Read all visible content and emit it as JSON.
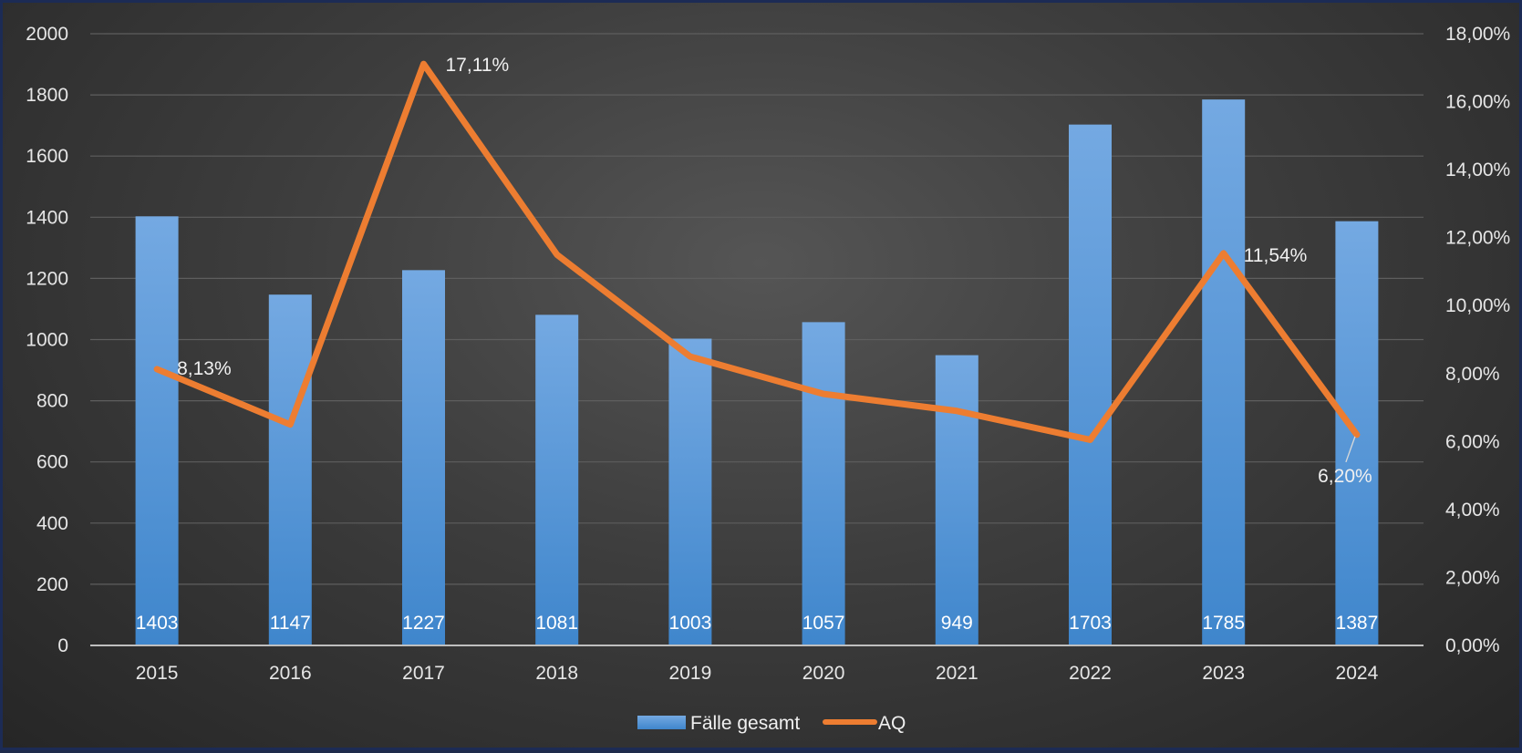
{
  "chart_data": {
    "type": "bar",
    "categories": [
      "2015",
      "2016",
      "2017",
      "2018",
      "2019",
      "2020",
      "2021",
      "2022",
      "2023",
      "2024"
    ],
    "series": [
      {
        "name": "Fälle gesamt",
        "type": "bar",
        "axis": "left",
        "color": "#5b9bd5",
        "values": [
          1403,
          1147,
          1227,
          1081,
          1003,
          1057,
          949,
          1703,
          1785,
          1387
        ],
        "data_labels": [
          "1403",
          "1147",
          "1227",
          "1081",
          "1003",
          "1057",
          "949",
          "1703",
          "1785",
          "1387"
        ]
      },
      {
        "name": "AQ",
        "type": "line",
        "axis": "right",
        "color": "#ed7d31",
        "values": [
          8.13,
          6.5,
          17.11,
          11.5,
          8.5,
          7.4,
          6.9,
          6.05,
          11.54,
          6.2
        ],
        "data_labels": [
          "8,13%",
          null,
          "17,11%",
          null,
          null,
          null,
          null,
          null,
          "11,54%",
          "6,20%"
        ]
      }
    ],
    "y_left": {
      "ylim": [
        0,
        2000
      ],
      "ticks": [
        0,
        200,
        400,
        600,
        800,
        1000,
        1200,
        1400,
        1600,
        1800,
        2000
      ],
      "tick_labels": [
        "0",
        "200",
        "400",
        "600",
        "800",
        "1000",
        "1200",
        "1400",
        "1600",
        "1800",
        "2000"
      ]
    },
    "y_right": {
      "ylim": [
        0,
        18
      ],
      "ticks": [
        0,
        2,
        4,
        6,
        8,
        10,
        12,
        14,
        16,
        18
      ],
      "tick_labels": [
        "0,00%",
        "2,00%",
        "4,00%",
        "6,00%",
        "8,00%",
        "10,00%",
        "12,00%",
        "14,00%",
        "16,00%",
        "18,00%"
      ]
    },
    "title": "",
    "xlabel": "",
    "ylabel": "",
    "grid": true,
    "legend": {
      "position": "bottom",
      "entries": [
        "Fälle gesamt",
        "AQ"
      ]
    }
  }
}
